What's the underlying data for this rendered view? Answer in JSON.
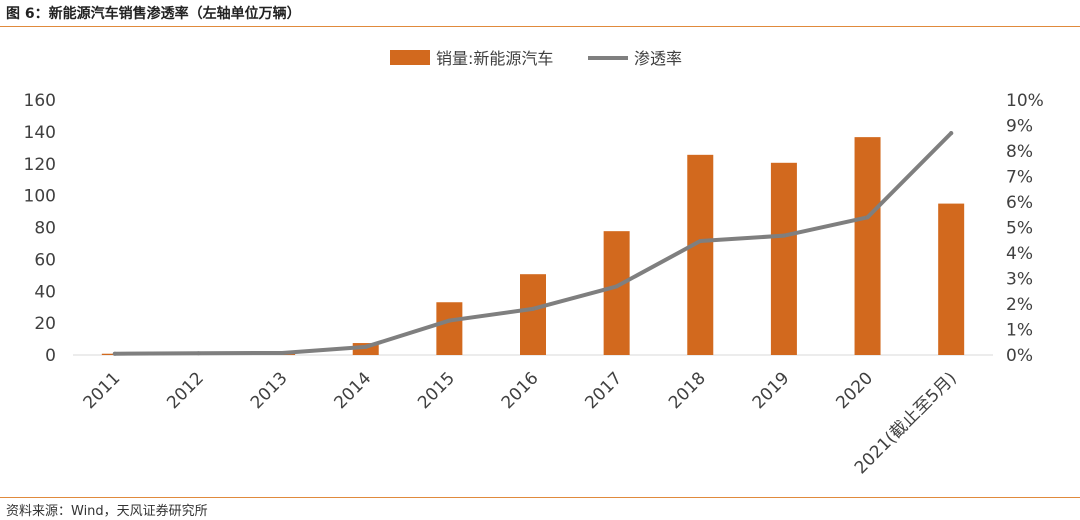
{
  "figure": {
    "title": "图 6：新能源汽车销售渗透率（左轴单位万辆）",
    "source": "资料来源：Wind，天风证券研究所"
  },
  "chart_data": {
    "type": "bar+line",
    "categories": [
      "2011",
      "2012",
      "2013",
      "2014",
      "2015",
      "2016",
      "2017",
      "2018",
      "2019",
      "2020",
      "2021(截止至5月)"
    ],
    "series": [
      {
        "name": "销量:新能源汽车",
        "type": "bar",
        "axis": "left",
        "color": "#d2691e",
        "values": [
          0.8,
          1.3,
          1.8,
          7.5,
          33.1,
          50.7,
          77.7,
          125.6,
          120.6,
          136.7,
          95.0
        ]
      },
      {
        "name": "渗透率",
        "type": "line",
        "axis": "right",
        "color": "#7f7f7f",
        "values": [
          0.05,
          0.07,
          0.08,
          0.32,
          1.35,
          1.81,
          2.69,
          4.47,
          4.68,
          5.4,
          8.7
        ]
      }
    ],
    "y_left": {
      "min": 0,
      "max": 160,
      "step": 20,
      "ticks": [
        "0",
        "20",
        "40",
        "60",
        "80",
        "100",
        "120",
        "140",
        "160"
      ]
    },
    "y_right": {
      "min": 0,
      "max": 10,
      "step": 1,
      "ticks": [
        "0%",
        "1%",
        "2%",
        "3%",
        "4%",
        "5%",
        "6%",
        "7%",
        "8%",
        "9%",
        "10%"
      ]
    },
    "legend_position": "top-center",
    "grid": false
  }
}
